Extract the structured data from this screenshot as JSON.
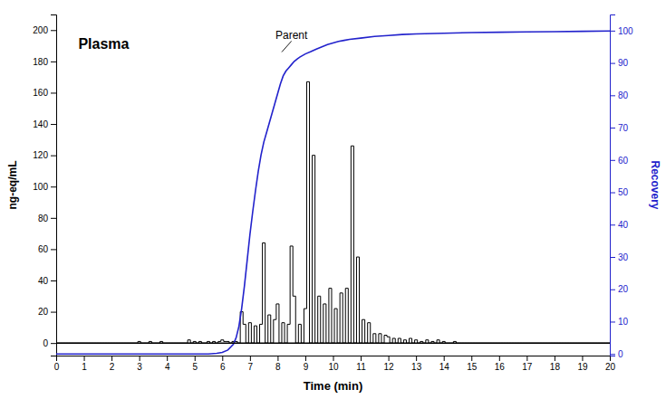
{
  "chart_data": {
    "type": "line",
    "xlabel": "Time (min)",
    "ylabel": "ng-eq/mL",
    "y2label": "Recovery",
    "xlim": [
      0,
      20
    ],
    "ylim": [
      -8,
      210
    ],
    "y2lim": [
      -0.5,
      105
    ],
    "xticks": [
      0,
      1,
      2,
      3,
      4,
      5,
      6,
      7,
      8,
      9,
      10,
      11,
      12,
      13,
      14,
      15,
      16,
      17,
      18,
      19,
      20
    ],
    "yticks": [
      0,
      20,
      40,
      60,
      80,
      100,
      120,
      140,
      160,
      180,
      200
    ],
    "y2ticks": [
      0,
      10,
      20,
      30,
      40,
      50,
      60,
      70,
      80,
      90,
      100
    ],
    "grid": false,
    "series": [
      {
        "type": "step",
        "color": "black",
        "x": [
          0.0,
          0.1,
          0.2,
          0.3,
          0.4,
          0.5,
          0.6,
          0.7,
          0.8,
          0.9,
          1.0,
          1.1,
          1.2,
          1.3,
          1.4,
          1.5,
          1.6,
          1.7,
          1.8,
          1.9,
          2.0,
          2.1,
          2.2,
          2.3,
          2.4,
          2.5,
          2.6,
          2.7,
          2.8,
          2.9,
          3.0,
          3.1,
          3.2,
          3.3,
          3.4,
          3.5,
          3.6,
          3.7,
          3.8,
          3.9,
          4.0,
          4.1,
          4.2,
          4.3,
          4.4,
          4.5,
          4.6,
          4.7,
          4.8,
          4.9,
          5.0,
          5.1,
          5.2,
          5.3,
          5.4,
          5.5,
          5.6,
          5.7,
          5.8,
          5.9,
          6.0,
          6.1,
          6.2,
          6.3,
          6.4,
          6.5,
          6.6,
          6.7,
          6.8,
          6.9,
          7.0,
          7.1,
          7.2,
          7.3,
          7.4,
          7.5,
          7.6,
          7.7,
          7.8,
          7.9,
          8.0,
          8.1,
          8.2,
          8.3,
          8.4,
          8.5,
          8.6,
          8.7,
          8.8,
          8.9,
          9.0,
          9.1,
          9.2,
          9.3,
          9.4,
          9.5,
          9.6,
          9.7,
          9.8,
          9.9,
          10.0,
          10.1,
          10.2,
          10.3,
          10.4,
          10.5,
          10.6,
          10.7,
          10.8,
          10.9,
          11.0,
          11.1,
          11.2,
          11.3,
          11.4,
          11.5,
          11.6,
          11.7,
          11.8,
          11.9,
          12.0,
          12.1,
          12.2,
          12.3,
          12.4,
          12.5,
          12.6,
          12.7,
          12.8,
          12.9,
          13.0,
          13.1,
          13.2,
          13.3,
          13.4,
          13.5,
          13.6,
          13.7,
          13.8,
          13.9,
          14.0,
          14.1,
          14.2,
          14.3,
          14.4,
          14.5,
          14.6,
          14.7,
          14.8,
          14.9,
          15.0,
          15.1,
          15.2,
          15.3,
          15.4,
          15.5,
          15.6,
          15.7,
          15.8,
          15.9,
          16.0,
          16.1,
          16.2,
          16.3,
          16.4,
          16.5,
          16.6,
          16.7,
          16.8,
          16.9,
          17.0,
          17.1,
          17.2,
          17.3,
          17.4,
          17.5,
          17.6,
          17.7,
          17.8,
          17.9,
          18.0,
          18.1,
          18.2,
          18.3,
          18.4,
          18.5,
          18.6,
          18.7,
          18.8,
          18.9,
          19.0,
          19.1,
          19.2,
          19.3,
          19.4,
          19.5,
          19.6,
          19.7,
          19.8,
          19.9,
          20.0
        ],
        "values": [
          0,
          0,
          0,
          0,
          0,
          0,
          0,
          0,
          0,
          0,
          0,
          0,
          0,
          0,
          0,
          0,
          0,
          0,
          0,
          0,
          0,
          0,
          0,
          0,
          0,
          0,
          0,
          0,
          0,
          0,
          1,
          0,
          0,
          0,
          1,
          0,
          0,
          0,
          1,
          0,
          0,
          0,
          0,
          0,
          0,
          0,
          0,
          0,
          2,
          0,
          1,
          0,
          1,
          0,
          0,
          1,
          0,
          1,
          0,
          1,
          2,
          1,
          1,
          0,
          1,
          1,
          0,
          20,
          12,
          0,
          13,
          0,
          11,
          0,
          12,
          64,
          0,
          18,
          0,
          15,
          25,
          0,
          13,
          0,
          12,
          62,
          30,
          0,
          12,
          0,
          22,
          167,
          0,
          120,
          0,
          30,
          0,
          25,
          0,
          35,
          0,
          22,
          0,
          32,
          0,
          35,
          0,
          126,
          0,
          55,
          0,
          15,
          0,
          13,
          0,
          6,
          0,
          6,
          0,
          5,
          4,
          0,
          3,
          0,
          3,
          0,
          2,
          0,
          3,
          0,
          2,
          0,
          1,
          0,
          2,
          0,
          1,
          0,
          2,
          0,
          1,
          0,
          0,
          0,
          1,
          0,
          0,
          0,
          0,
          0,
          0,
          0,
          0,
          0,
          0,
          0,
          0,
          0,
          0,
          0,
          0,
          0,
          0,
          0,
          0,
          0,
          0,
          0,
          0,
          0,
          0,
          0,
          0,
          0,
          0,
          0,
          0,
          0,
          0,
          0,
          0,
          0,
          0,
          0,
          0,
          0,
          0,
          0,
          0,
          0,
          0,
          0,
          0,
          0,
          0,
          0,
          0,
          0,
          0,
          0,
          0
        ]
      },
      {
        "type": "line",
        "color": "#2222cc",
        "axis": "y2",
        "x": [
          0.0,
          1.0,
          2.0,
          3.0,
          4.0,
          5.0,
          5.5,
          5.8,
          6.0,
          6.2,
          6.4,
          6.5,
          6.6,
          6.7,
          6.8,
          6.9,
          7.0,
          7.1,
          7.2,
          7.3,
          7.4,
          7.5,
          7.6,
          7.7,
          7.8,
          7.9,
          8.0,
          8.1,
          8.2,
          8.3,
          8.4,
          8.5,
          8.6,
          8.7,
          8.8,
          8.9,
          9.0,
          9.2,
          9.4,
          9.6,
          9.8,
          10.0,
          10.2,
          10.4,
          10.6,
          11.0,
          11.5,
          12.0,
          12.5,
          13.0,
          14.0,
          15.0,
          16.0,
          17.0,
          18.0,
          19.0,
          20.0
        ],
        "values": [
          0.0,
          0.0,
          0.0,
          0.0,
          0.0,
          0.0,
          0.0,
          0.2,
          0.5,
          1.2,
          3.0,
          5.0,
          8.5,
          14.0,
          21.0,
          29.0,
          37.0,
          44.0,
          50.5,
          56.5,
          61.5,
          65.5,
          68.5,
          71.5,
          74.5,
          77.5,
          80.5,
          83.5,
          86.0,
          87.5,
          88.5,
          89.5,
          90.5,
          91.2,
          91.8,
          92.3,
          92.8,
          93.5,
          94.3,
          95.0,
          95.7,
          96.2,
          96.7,
          97.0,
          97.3,
          97.7,
          98.2,
          98.5,
          98.8,
          99.0,
          99.2,
          99.4,
          99.5,
          99.6,
          99.7,
          99.8,
          99.9
        ]
      }
    ],
    "reference_lines": [
      {
        "y": 0,
        "color": "black"
      }
    ],
    "annotations": [
      {
        "text": "Plasma",
        "x": 0.8,
        "y": 188
      },
      {
        "text": "Parent",
        "x": 8.5,
        "y": 193,
        "point": [
          8.15,
          186
        ]
      }
    ]
  }
}
